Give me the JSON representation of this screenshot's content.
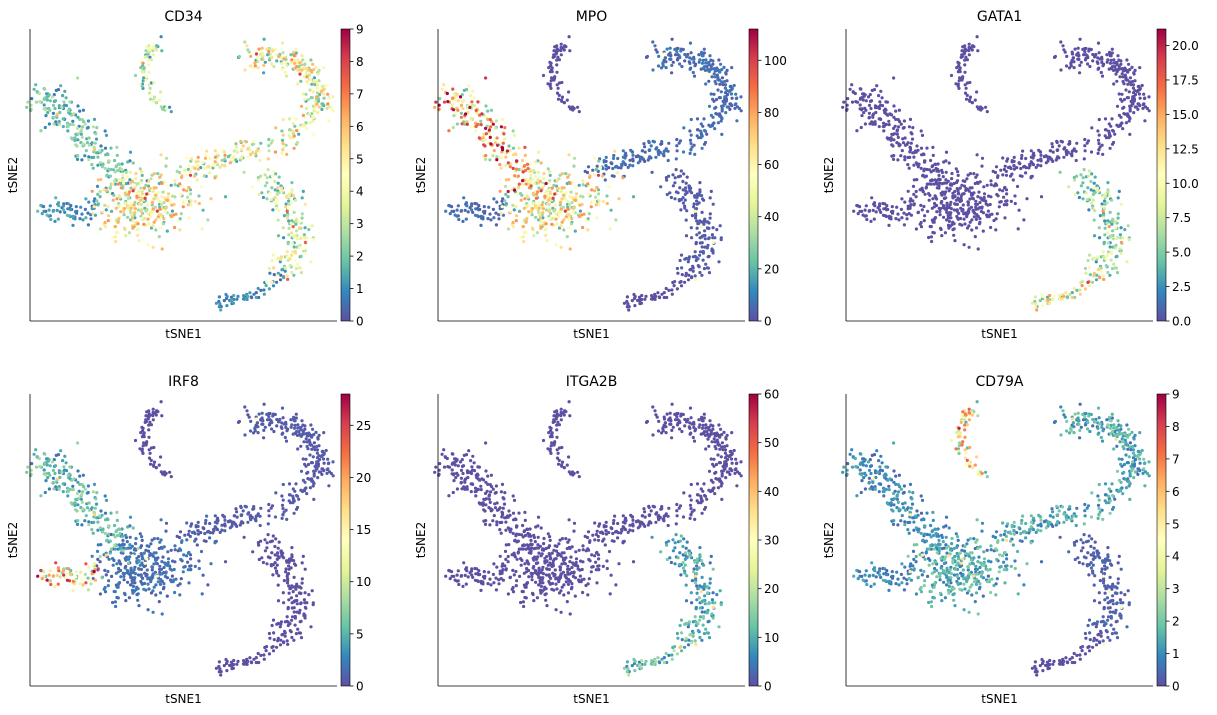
{
  "chart_data": {
    "type": "scatter",
    "colormap": [
      "#5e4fa2",
      "#3288bd",
      "#66c2a5",
      "#abdda4",
      "#e6f598",
      "#ffffbf",
      "#fee08b",
      "#fdae61",
      "#f46d43",
      "#d53e4f",
      "#9e0142"
    ],
    "regions": [
      "top_arm",
      "left_arm",
      "center",
      "left_blob",
      "upper_right",
      "lower_right",
      "bottom_tip"
    ],
    "panels": [
      {
        "title": "CD34",
        "xlabel": "tSNE1",
        "ylabel": "tSNE2",
        "vmin": 0,
        "vmax": 9,
        "ticks": [
          "0",
          "1",
          "2",
          "3",
          "4",
          "5",
          "6",
          "7",
          "8",
          "9"
        ],
        "region_mean_fraction": {
          "top_arm": 0.3,
          "left_arm": 0.2,
          "center": 0.45,
          "left_blob": 0.12,
          "upper_right": 0.45,
          "lower_right": 0.38,
          "bottom_tip": 0.1
        }
      },
      {
        "title": "MPO",
        "xlabel": "tSNE1",
        "ylabel": "tSNE2",
        "vmin": 0,
        "vmax": 112,
        "ticks": [
          "0",
          "20",
          "40",
          "60",
          "80",
          "100"
        ],
        "region_mean_fraction": {
          "top_arm": 0,
          "left_arm": 0.6,
          "center": 0.45,
          "left_blob": 0.05,
          "upper_right": 0.05,
          "lower_right": 0.02,
          "bottom_tip": 0
        }
      },
      {
        "title": "GATA1",
        "xlabel": "tSNE1",
        "ylabel": "tSNE2",
        "vmin": 0,
        "vmax": 21.2,
        "ticks": [
          "0.0",
          "2.5",
          "5.0",
          "7.5",
          "10.0",
          "12.5",
          "15.0",
          "17.5",
          "20.0"
        ],
        "region_mean_fraction": {
          "top_arm": 0,
          "left_arm": 0,
          "center": 0,
          "left_blob": 0,
          "upper_right": 0,
          "lower_right": 0.28,
          "bottom_tip": 0.45
        }
      },
      {
        "title": "IRF8",
        "xlabel": "tSNE1",
        "ylabel": "tSNE2",
        "vmin": 0,
        "vmax": 28,
        "ticks": [
          "0",
          "5",
          "10",
          "15",
          "20",
          "25"
        ],
        "region_mean_fraction": {
          "top_arm": 0,
          "left_arm": 0.18,
          "center": 0.05,
          "left_blob": 0.6,
          "upper_right": 0.02,
          "lower_right": 0,
          "bottom_tip": 0
        }
      },
      {
        "title": "ITGA2B",
        "xlabel": "tSNE1",
        "ylabel": "tSNE2",
        "vmin": 0,
        "vmax": 60,
        "ticks": [
          "0",
          "10",
          "20",
          "30",
          "40",
          "50",
          "60"
        ],
        "region_mean_fraction": {
          "top_arm": 0,
          "left_arm": 0,
          "center": 0,
          "left_blob": 0,
          "upper_right": 0,
          "lower_right": 0.15,
          "bottom_tip": 0.2
        }
      },
      {
        "title": "CD79A",
        "xlabel": "tSNE1",
        "ylabel": "tSNE2",
        "vmin": 0,
        "vmax": 9,
        "ticks": [
          "0",
          "1",
          "2",
          "3",
          "4",
          "5",
          "6",
          "7",
          "8",
          "9"
        ],
        "region_mean_fraction": {
          "top_arm": 0.5,
          "left_arm": 0.1,
          "center": 0.15,
          "left_blob": 0.1,
          "upper_right": 0.15,
          "lower_right": 0.03,
          "bottom_tip": 0
        }
      }
    ]
  }
}
